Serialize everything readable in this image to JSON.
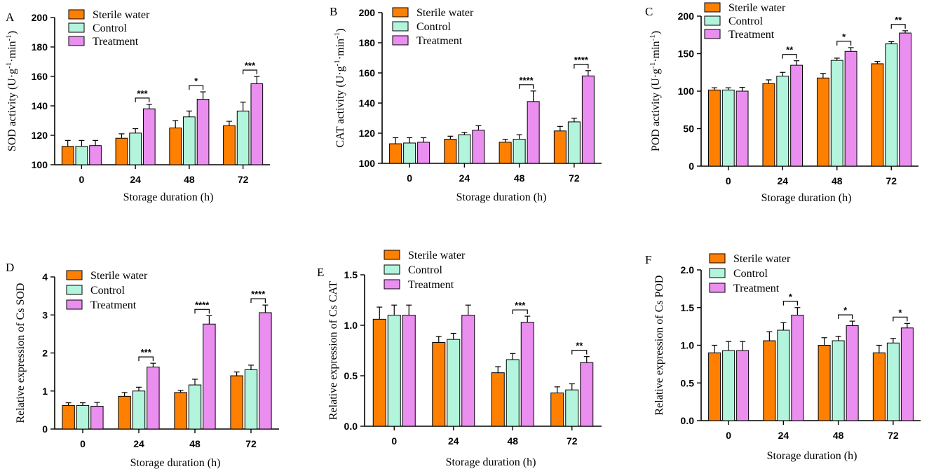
{
  "colors": {
    "sterile": "#ff8000",
    "control": "#b3f5dc",
    "treatment": "#ea8ef0",
    "stroke": "#000000"
  },
  "chart_data": [
    {
      "panel": "A",
      "type": "bar",
      "title": "",
      "xlabel": "Storage duration (h)",
      "ylabel_text": "SOD activity (U·g",
      "ylabel_sup1": "-1",
      "ylabel_mid": "·min",
      "ylabel_sup2": "-1",
      "ylabel_end": ")",
      "ylim": [
        100,
        200
      ],
      "yticks": [
        100,
        120,
        140,
        160,
        180,
        200
      ],
      "categories": [
        "0",
        "24",
        "48",
        "72"
      ],
      "legend": [
        "Sterile water",
        "Control",
        "Treatment"
      ],
      "series": [
        {
          "name": "Sterile water",
          "values": [
            112.5,
            118,
            125,
            126.5
          ],
          "errors": [
            4,
            3,
            5,
            3
          ]
        },
        {
          "name": "Control",
          "values": [
            112.5,
            121.5,
            132.5,
            136.5
          ],
          "errors": [
            4,
            3,
            4,
            6
          ]
        },
        {
          "name": "Treatment",
          "values": [
            113,
            138,
            144.5,
            155
          ],
          "errors": [
            3.5,
            3,
            5,
            5
          ]
        }
      ],
      "annotations": [
        {
          "category": 1,
          "label": "***"
        },
        {
          "category": 2,
          "label": "*"
        },
        {
          "category": 3,
          "label": "***"
        }
      ]
    },
    {
      "panel": "B",
      "type": "bar",
      "title": "",
      "xlabel": "Storage duration (h)",
      "ylabel_text": "CAT activity (U·g",
      "ylabel_sup1": "-1",
      "ylabel_mid": "·min",
      "ylabel_sup2": "-1",
      "ylabel_end": ")",
      "ylim": [
        100,
        200
      ],
      "yticks": [
        100,
        120,
        140,
        160,
        180,
        200
      ],
      "categories": [
        "0",
        "24",
        "48",
        "72"
      ],
      "legend": [
        "Sterile water",
        "Control",
        "Treatment"
      ],
      "series": [
        {
          "name": "Sterile water",
          "values": [
            113,
            116,
            114,
            121.5
          ],
          "errors": [
            4,
            2,
            2,
            3
          ]
        },
        {
          "name": "Control",
          "values": [
            113.5,
            119,
            116,
            127.5
          ],
          "errors": [
            3.5,
            1.5,
            3,
            2.5
          ]
        },
        {
          "name": "Treatment",
          "values": [
            114,
            122,
            141,
            158
          ],
          "errors": [
            3,
            3,
            7,
            3.5
          ]
        }
      ],
      "annotations": [
        {
          "category": 2,
          "label": "****"
        },
        {
          "category": 3,
          "label": "****"
        }
      ]
    },
    {
      "panel": "C",
      "type": "bar",
      "title": "",
      "xlabel": "Storage duration (h)",
      "ylabel_text": "POD activity (U·g",
      "ylabel_sup1": "-1",
      "ylabel_mid": "·min",
      "ylabel_sup2": "-1",
      "ylabel_end": ")",
      "ylim": [
        0,
        200
      ],
      "yticks": [
        0,
        50,
        100,
        150,
        200
      ],
      "categories": [
        "0",
        "24",
        "48",
        "72"
      ],
      "legend": [
        "Sterile water",
        "Control",
        "Treatment"
      ],
      "series": [
        {
          "name": "Sterile water",
          "values": [
            101.5,
            110,
            117.5,
            136.5
          ],
          "errors": [
            3,
            5,
            6,
            3
          ]
        },
        {
          "name": "Control",
          "values": [
            101.5,
            120,
            141,
            163
          ],
          "errors": [
            3,
            5,
            3,
            3
          ]
        },
        {
          "name": "Treatment",
          "values": [
            100,
            134.5,
            153,
            177.5
          ],
          "errors": [
            5,
            6,
            5,
            3
          ]
        }
      ],
      "annotations": [
        {
          "category": 1,
          "label": "**"
        },
        {
          "category": 2,
          "label": "*"
        },
        {
          "category": 3,
          "label": "**"
        }
      ]
    },
    {
      "panel": "D",
      "type": "bar",
      "title": "",
      "xlabel": "Storage duration (h)",
      "ylabel_text": "Relative expression of Cs SOD",
      "ylabel_sup1": "",
      "ylabel_mid": "",
      "ylabel_sup2": "",
      "ylabel_end": "",
      "ylim": [
        0,
        4
      ],
      "yticks": [
        0,
        1,
        2,
        3,
        4
      ],
      "categories": [
        "0",
        "24",
        "48",
        "72"
      ],
      "legend": [
        "Sterile water",
        "Control",
        "Treatment"
      ],
      "series": [
        {
          "name": "Sterile water",
          "values": [
            0.62,
            0.86,
            0.96,
            1.4
          ],
          "errors": [
            0.07,
            0.1,
            0.06,
            0.1
          ]
        },
        {
          "name": "Control",
          "values": [
            0.62,
            1.0,
            1.16,
            1.56
          ],
          "errors": [
            0.07,
            0.1,
            0.15,
            0.12
          ]
        },
        {
          "name": "Treatment",
          "values": [
            0.6,
            1.63,
            2.76,
            3.06
          ],
          "errors": [
            0.1,
            0.1,
            0.22,
            0.2
          ]
        }
      ],
      "annotations": [
        {
          "category": 1,
          "label": "***"
        },
        {
          "category": 2,
          "label": "****"
        },
        {
          "category": 3,
          "label": "****"
        }
      ]
    },
    {
      "panel": "E",
      "type": "bar",
      "title": "",
      "xlabel": "Storage duration (h)",
      "ylabel_text": "Relative expression of Cs CAT",
      "ylabel_sup1": "",
      "ylabel_mid": "",
      "ylabel_sup2": "",
      "ylabel_end": "",
      "ylim": [
        0,
        1.5
      ],
      "yticks": [
        0.0,
        0.5,
        1.0,
        1.5
      ],
      "ytick_labels": [
        "0.0",
        "0.5",
        "1.0",
        "1.5"
      ],
      "categories": [
        "0",
        "24",
        "48",
        "72"
      ],
      "legend": [
        "Sterile water",
        "Control",
        "Treatment"
      ],
      "series": [
        {
          "name": "Sterile water",
          "values": [
            1.06,
            0.83,
            0.53,
            0.33
          ],
          "errors": [
            0.12,
            0.06,
            0.06,
            0.06
          ]
        },
        {
          "name": "Control",
          "values": [
            1.1,
            0.86,
            0.66,
            0.36
          ],
          "errors": [
            0.1,
            0.06,
            0.06,
            0.06
          ]
        },
        {
          "name": "Treatment",
          "values": [
            1.1,
            1.1,
            1.03,
            0.63
          ],
          "errors": [
            0.1,
            0.1,
            0.06,
            0.06
          ]
        }
      ],
      "annotations": [
        {
          "category": 2,
          "label": "***"
        },
        {
          "category": 3,
          "label": "**"
        }
      ]
    },
    {
      "panel": "F",
      "type": "bar",
      "title": "",
      "xlabel": "Storage duration (h)",
      "ylabel_text": "Relative expression of Cs POD",
      "ylabel_sup1": "",
      "ylabel_mid": "",
      "ylabel_sup2": "",
      "ylabel_end": "",
      "ylim": [
        0,
        2
      ],
      "yticks": [
        0.0,
        0.5,
        1.0,
        1.5,
        2.0
      ],
      "ytick_labels": [
        "0.0",
        "0.5",
        "1.0",
        "1.5",
        "2.0"
      ],
      "categories": [
        "0",
        "24",
        "48",
        "72"
      ],
      "legend": [
        "Sterile water",
        "Control",
        "Treatment"
      ],
      "series": [
        {
          "name": "Sterile water",
          "values": [
            0.9,
            1.06,
            1.0,
            0.9
          ],
          "errors": [
            0.1,
            0.12,
            0.1,
            0.1
          ]
        },
        {
          "name": "Control",
          "values": [
            0.93,
            1.2,
            1.06,
            1.03
          ],
          "errors": [
            0.12,
            0.1,
            0.06,
            0.06
          ]
        },
        {
          "name": "Treatment",
          "values": [
            0.93,
            1.4,
            1.26,
            1.23
          ],
          "errors": [
            0.12,
            0.1,
            0.06,
            0.06
          ]
        }
      ],
      "annotations": [
        {
          "category": 1,
          "label": "*"
        },
        {
          "category": 2,
          "label": "*"
        },
        {
          "category": 3,
          "label": "*"
        }
      ]
    }
  ]
}
